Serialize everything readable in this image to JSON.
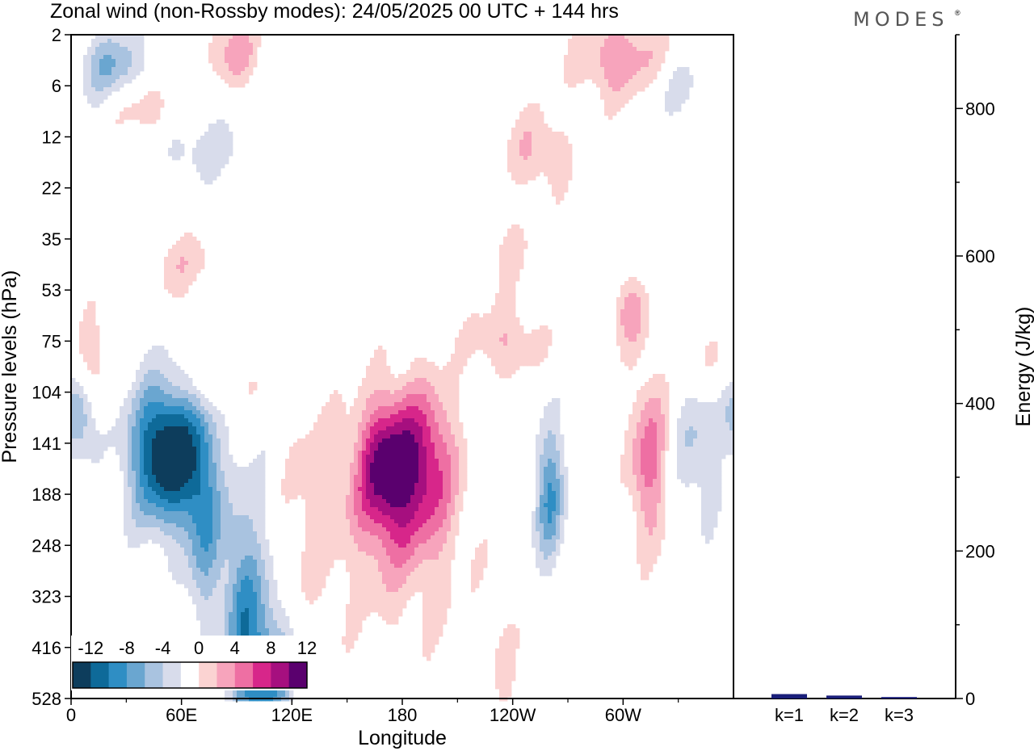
{
  "title": "Zonal wind (non-Rossby modes):  24/05/2025  00 UTC  + 144 hrs",
  "logo": "MODES",
  "logo_mark": "®",
  "colors": {
    "neg": [
      "#0d3d5c",
      "#0e6a99",
      "#2f8ec4",
      "#6aa6d0",
      "#a9c3e0",
      "#d8dceb"
    ],
    "zero": "#ffffff",
    "pos": [
      "#fbd3d2",
      "#f7a4bc",
      "#ee6fa3",
      "#d7268a",
      "#a60f7f",
      "#5a006e"
    ],
    "bar": "#1a1f7a"
  },
  "chart_data": [
    {
      "type": "heatmap",
      "title": "Zonal wind (non-Rossby modes):  24/05/2025  00 UTC  + 144 hrs",
      "xlabel": "Longitude",
      "ylabel": "Pressure levels (hPa)",
      "x_ticks": [
        "0",
        "60E",
        "120E",
        "180",
        "120W",
        "60W"
      ],
      "x_tick_values": [
        0,
        60,
        120,
        180,
        240,
        300
      ],
      "xlim": [
        0,
        360
      ],
      "y_ticks": [
        "2",
        "6",
        "12",
        "22",
        "35",
        "53",
        "75",
        "104",
        "141",
        "188",
        "248",
        "323",
        "416",
        "528"
      ],
      "colorbar": {
        "tick_labels": [
          "-12",
          "-8",
          "-4",
          "0",
          "4",
          "8",
          "12"
        ],
        "levels": [
          -14,
          -12,
          -10,
          -8,
          -6,
          -4,
          -2,
          2,
          4,
          6,
          8,
          10,
          12,
          14
        ]
      },
      "features": [
        {
          "lon": 52,
          "level_index": 8.2,
          "value": -15,
          "lon_spread": 14,
          "lev_spread": 1.0
        },
        {
          "lon": 72,
          "level_index": 9.5,
          "value": -7,
          "lon_spread": 7,
          "lev_spread": 1.4
        },
        {
          "lon": 92,
          "level_index": 11.5,
          "value": -6,
          "lon_spread": 7,
          "lev_spread": 1.6
        },
        {
          "lon": 108,
          "level_index": 12.6,
          "value": -7,
          "lon_spread": 9,
          "lev_spread": 1.0
        },
        {
          "lon": 4,
          "level_index": 7.4,
          "value": -7,
          "lon_spread": 6,
          "lev_spread": 0.6
        },
        {
          "lon": 172,
          "level_index": 8.5,
          "value": 12,
          "lon_spread": 12,
          "lev_spread": 1.0
        },
        {
          "lon": 194,
          "level_index": 8.3,
          "value": 7,
          "lon_spread": 11,
          "lev_spread": 1.1
        },
        {
          "lon": 260,
          "level_index": 9.0,
          "value": -8,
          "lon_spread": 6,
          "lev_spread": 1.0
        },
        {
          "lon": 314,
          "level_index": 8.3,
          "value": 7,
          "lon_spread": 8,
          "lev_spread": 1.2
        },
        {
          "lon": 304,
          "level_index": 5.4,
          "value": 5,
          "lon_spread": 7,
          "lev_spread": 0.5
        },
        {
          "lon": 236,
          "level_index": 6.0,
          "value": 4,
          "lon_spread": 15,
          "lev_spread": 0.5
        },
        {
          "lon": 300,
          "level_index": 0.5,
          "value": 6,
          "lon_spread": 18,
          "lev_spread": 0.6
        },
        {
          "lon": 88,
          "level_index": 0.3,
          "value": 5,
          "lon_spread": 10,
          "lev_spread": 0.5
        },
        {
          "lon": 22,
          "level_index": 0.6,
          "value": -6,
          "lon_spread": 12,
          "lev_spread": 0.5
        },
        {
          "lon": 40,
          "level_index": 1.5,
          "value": 4,
          "lon_spread": 12,
          "lev_spread": 0.4
        },
        {
          "lon": 70,
          "level_index": 2.2,
          "value": -3,
          "lon_spread": 22,
          "lev_spread": 0.5
        },
        {
          "lon": 254,
          "level_index": 2.3,
          "value": 4,
          "lon_spread": 14,
          "lev_spread": 0.6
        },
        {
          "lon": 235,
          "level_index": 4.2,
          "value": 2.5,
          "lon_spread": 12,
          "lev_spread": 0.6
        },
        {
          "lon": 60,
          "level_index": 4.5,
          "value": 3,
          "lon_spread": 20,
          "lev_spread": 0.5
        },
        {
          "lon": 10,
          "level_index": 6.2,
          "value": 3,
          "lon_spread": 8,
          "lev_spread": 0.7
        },
        {
          "lon": 100,
          "level_index": 11.0,
          "value": -3,
          "lon_spread": 10,
          "lev_spread": 2.0
        },
        {
          "lon": 180,
          "level_index": 10.0,
          "value": 3,
          "lon_spread": 30,
          "lev_spread": 1.6
        },
        {
          "lon": 340,
          "level_index": 8.0,
          "value": -4,
          "lon_spread": 10,
          "lev_spread": 1.2
        },
        {
          "lon": 235,
          "level_index": 12.5,
          "value": 2.5,
          "lon_spread": 6,
          "lev_spread": 0.8
        },
        {
          "lon": 130,
          "level_index": 9.0,
          "value": 2.5,
          "lon_spread": 12,
          "lev_spread": 1.6
        },
        {
          "lon": 80,
          "level_index": 6.8,
          "value": 3,
          "lon_spread": 18,
          "lev_spread": 0.4
        },
        {
          "lon": 348,
          "level_index": 6.5,
          "value": 2.5,
          "lon_spread": 14,
          "lev_spread": 0.5
        },
        {
          "lon": 330,
          "level_index": 1.0,
          "value": -3,
          "lon_spread": 16,
          "lev_spread": 0.5
        }
      ]
    },
    {
      "type": "bar",
      "categories": [
        "k=1",
        "k=2",
        "k=3"
      ],
      "values": [
        6,
        4,
        2
      ],
      "ylabel": "Energy (J/kg)",
      "ylim": [
        0,
        900
      ],
      "y_ticks": [
        "0",
        "200",
        "400",
        "600",
        "800"
      ],
      "y_tick_values": [
        0,
        200,
        400,
        600,
        800
      ]
    }
  ]
}
